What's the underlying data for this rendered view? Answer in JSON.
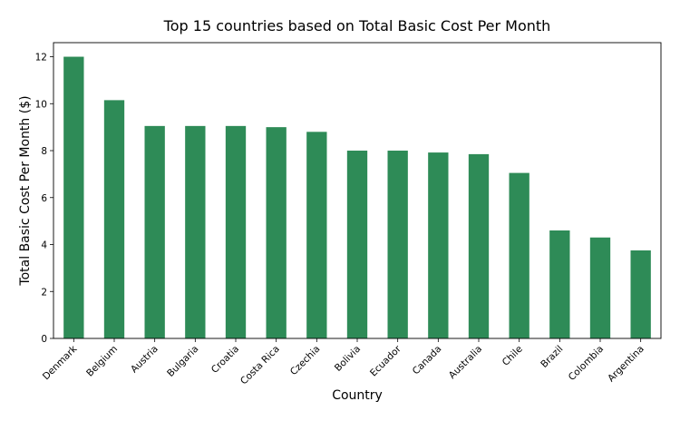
{
  "chart_data": {
    "type": "bar",
    "title": "Top 15 countries based on Total Basic Cost Per Month",
    "xlabel": "Country",
    "ylabel": "Total Basic Cost Per Month ($)",
    "categories": [
      "Denmark",
      "Belgium",
      "Austria",
      "Bulgaria",
      "Croatia",
      "Costa Rica",
      "Czechia",
      "Bolivia",
      "Ecuador",
      "Canada",
      "Australia",
      "Chile",
      "Brazil",
      "Colombia",
      "Argentina"
    ],
    "values": [
      12.0,
      10.15,
      9.05,
      9.05,
      9.05,
      9.0,
      8.8,
      8.0,
      8.0,
      7.92,
      7.85,
      7.05,
      4.6,
      4.3,
      3.75
    ],
    "yticks": [
      0,
      2,
      4,
      6,
      8,
      10,
      12
    ],
    "ylim": [
      0,
      12.6
    ],
    "bar_color": "#2e8b57",
    "grid": false,
    "legend": "none"
  }
}
